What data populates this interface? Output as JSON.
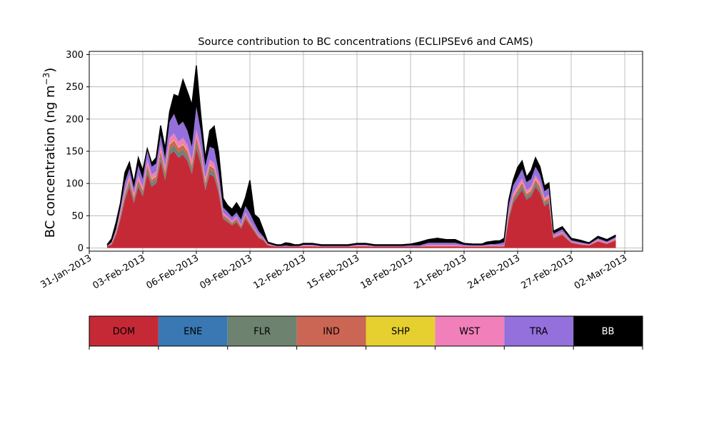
{
  "chart_data": {
    "type": "area",
    "title": "Source contribution to BC concentrations (ECLIPSEv6 and CAMS)",
    "ylabel_main": "BC concentration (ng m",
    "ylabel_sup": "−3",
    "ylabel_close": ")",
    "xlabel": "",
    "xlim": [
      "2013-01-31",
      "2013-03-03"
    ],
    "ylim": [
      -5,
      305
    ],
    "y_ticks": [
      0,
      50,
      100,
      150,
      200,
      250,
      300
    ],
    "x_ticks": [
      "2013-01-31",
      "2013-02-03",
      "2013-02-06",
      "2013-02-09",
      "2013-02-12",
      "2013-02-15",
      "2013-02-18",
      "2013-02-21",
      "2013-02-24",
      "2013-02-27",
      "2013-03-02"
    ],
    "x_tick_labels": [
      "31-Jan-2013",
      "03-Feb-2013",
      "06-Feb-2013",
      "09-Feb-2013",
      "12-Feb-2013",
      "15-Feb-2013",
      "18-Feb-2013",
      "21-Feb-2013",
      "24-Feb-2013",
      "27-Feb-2013",
      "02-Mar-2013"
    ],
    "grid": true,
    "stacked": true,
    "x": [
      "2013-02-01",
      "2013-02-01T06",
      "2013-02-01T12",
      "2013-02-01T18",
      "2013-02-02",
      "2013-02-02T06",
      "2013-02-02T12",
      "2013-02-02T18",
      "2013-02-03",
      "2013-02-03T06",
      "2013-02-03T12",
      "2013-02-03T18",
      "2013-02-04",
      "2013-02-04T06",
      "2013-02-04T12",
      "2013-02-04T18",
      "2013-02-05",
      "2013-02-05T06",
      "2013-02-05T12",
      "2013-02-05T18",
      "2013-02-06",
      "2013-02-06T06",
      "2013-02-06T12",
      "2013-02-06T18",
      "2013-02-07",
      "2013-02-07T06",
      "2013-02-07T12",
      "2013-02-07T18",
      "2013-02-08",
      "2013-02-08T06",
      "2013-02-08T12",
      "2013-02-08T18",
      "2013-02-09",
      "2013-02-09T06",
      "2013-02-09T12",
      "2013-02-09T18",
      "2013-02-10",
      "2013-02-10T06",
      "2013-02-10T12",
      "2013-02-10T18",
      "2013-02-11",
      "2013-02-11T06",
      "2013-02-11T12",
      "2013-02-11T18",
      "2013-02-12",
      "2013-02-12T12",
      "2013-02-13",
      "2013-02-13T12",
      "2013-02-14",
      "2013-02-14T12",
      "2013-02-15",
      "2013-02-15T12",
      "2013-02-16",
      "2013-02-16T12",
      "2013-02-17",
      "2013-02-17T12",
      "2013-02-18",
      "2013-02-18T12",
      "2013-02-19",
      "2013-02-19T12",
      "2013-02-20",
      "2013-02-20T12",
      "2013-02-21",
      "2013-02-21T12",
      "2013-02-22",
      "2013-02-22T06",
      "2013-02-22T12",
      "2013-02-22T18",
      "2013-02-23",
      "2013-02-23T06",
      "2013-02-23T12",
      "2013-02-23T18",
      "2013-02-24",
      "2013-02-24T06",
      "2013-02-24T12",
      "2013-02-24T18",
      "2013-02-25",
      "2013-02-25T06",
      "2013-02-25T12",
      "2013-02-25T18",
      "2013-02-26",
      "2013-02-26T12",
      "2013-02-27",
      "2013-02-27T12",
      "2013-02-28",
      "2013-02-28T12",
      "2013-03-01",
      "2013-03-01T12"
    ],
    "series": [
      {
        "name": "DOM",
        "color": "#c62936",
        "values": [
          3,
          5,
          20,
          45,
          75,
          95,
          70,
          95,
          80,
          115,
          95,
          100,
          135,
          105,
          145,
          150,
          140,
          145,
          135,
          115,
          155,
          130,
          90,
          115,
          110,
          85,
          45,
          40,
          35,
          40,
          30,
          45,
          35,
          25,
          15,
          12,
          4,
          3,
          2,
          2,
          2,
          2,
          2,
          2,
          2,
          2,
          2,
          2,
          2,
          2,
          2,
          2,
          2,
          2,
          2,
          2,
          2,
          2,
          2,
          2,
          2,
          2,
          2,
          2,
          2,
          2,
          2,
          2,
          2,
          2,
          45,
          70,
          80,
          90,
          75,
          80,
          95,
          85,
          65,
          70,
          15,
          20,
          8,
          5,
          4,
          10,
          6,
          12
        ]
      },
      {
        "name": "ENE",
        "color": "#3a78b4",
        "values": [
          0,
          0,
          0,
          1,
          1,
          1,
          1,
          1,
          1,
          1,
          1,
          1,
          1,
          1,
          1,
          1,
          1,
          1,
          1,
          1,
          1,
          1,
          1,
          1,
          1,
          1,
          0,
          0,
          0,
          0,
          0,
          0,
          0,
          0,
          0,
          0,
          0,
          0,
          0,
          0,
          0,
          0,
          0,
          0,
          0,
          0,
          0,
          0,
          0,
          0,
          0,
          0,
          0,
          0,
          0,
          0,
          0,
          0,
          0,
          0,
          0,
          0,
          0,
          0,
          0,
          0,
          0,
          0,
          0,
          0,
          1,
          1,
          1,
          1,
          1,
          1,
          1,
          1,
          1,
          1,
          0,
          0,
          0,
          0,
          0,
          0,
          0,
          0
        ]
      },
      {
        "name": "FLR",
        "color": "#6e8270",
        "values": [
          0,
          1,
          2,
          3,
          4,
          5,
          4,
          5,
          4,
          6,
          5,
          5,
          7,
          6,
          7,
          8,
          7,
          7,
          7,
          6,
          8,
          7,
          5,
          6,
          6,
          5,
          3,
          3,
          2,
          3,
          2,
          3,
          2,
          2,
          1,
          1,
          0,
          0,
          0,
          0,
          0,
          0,
          0,
          0,
          0,
          0,
          0,
          0,
          0,
          0,
          0,
          0,
          0,
          0,
          0,
          0,
          0,
          0,
          0,
          0,
          0,
          0,
          0,
          0,
          0,
          0,
          0,
          0,
          0,
          0,
          3,
          4,
          4,
          5,
          4,
          4,
          5,
          4,
          3,
          3,
          1,
          1,
          0,
          0,
          0,
          0,
          0,
          0
        ]
      },
      {
        "name": "IND",
        "color": "#cc6654",
        "values": [
          0,
          1,
          2,
          3,
          4,
          5,
          4,
          5,
          4,
          6,
          5,
          5,
          7,
          6,
          7,
          8,
          7,
          7,
          7,
          6,
          8,
          7,
          5,
          6,
          6,
          5,
          3,
          3,
          2,
          3,
          2,
          3,
          2,
          2,
          2,
          1,
          1,
          0,
          0,
          0,
          0,
          0,
          0,
          0,
          1,
          1,
          0,
          0,
          0,
          0,
          1,
          1,
          0,
          0,
          0,
          0,
          0,
          0,
          1,
          1,
          1,
          1,
          0,
          0,
          0,
          1,
          1,
          1,
          1,
          1,
          3,
          4,
          5,
          5,
          4,
          4,
          5,
          5,
          4,
          4,
          1,
          2,
          1,
          1,
          0,
          1,
          1,
          1
        ]
      },
      {
        "name": "SHP",
        "color": "#e6d030",
        "values": [
          0,
          0,
          0,
          1,
          1,
          1,
          1,
          1,
          1,
          1,
          1,
          1,
          1,
          1,
          1,
          1,
          1,
          1,
          1,
          1,
          1,
          1,
          1,
          1,
          1,
          1,
          0,
          0,
          0,
          0,
          0,
          0,
          0,
          0,
          0,
          0,
          0,
          0,
          0,
          0,
          0,
          0,
          0,
          0,
          0,
          0,
          0,
          0,
          0,
          0,
          0,
          0,
          0,
          0,
          0,
          0,
          0,
          0,
          0,
          0,
          0,
          0,
          0,
          0,
          0,
          0,
          0,
          0,
          0,
          0,
          1,
          1,
          1,
          1,
          1,
          1,
          1,
          1,
          1,
          1,
          0,
          0,
          0,
          0,
          0,
          0,
          0,
          0
        ]
      },
      {
        "name": "WST",
        "color": "#f07fba",
        "values": [
          0,
          1,
          2,
          4,
          5,
          6,
          5,
          6,
          5,
          8,
          7,
          7,
          9,
          8,
          10,
          10,
          9,
          10,
          9,
          8,
          11,
          10,
          7,
          8,
          8,
          6,
          4,
          3,
          3,
          3,
          2,
          4,
          3,
          2,
          2,
          1,
          1,
          1,
          0,
          0,
          0,
          0,
          0,
          0,
          1,
          1,
          0,
          0,
          0,
          0,
          1,
          1,
          0,
          0,
          0,
          0,
          0,
          0,
          2,
          2,
          2,
          2,
          1,
          1,
          1,
          1,
          1,
          1,
          1,
          1,
          4,
          5,
          6,
          6,
          5,
          5,
          6,
          6,
          4,
          4,
          2,
          2,
          1,
          1,
          1,
          2,
          1,
          2
        ]
      },
      {
        "name": "TRA",
        "color": "#9370db",
        "values": [
          0,
          1,
          3,
          6,
          12,
          10,
          8,
          15,
          12,
          15,
          12,
          12,
          15,
          12,
          25,
          30,
          25,
          25,
          22,
          20,
          35,
          25,
          18,
          20,
          22,
          15,
          8,
          7,
          6,
          6,
          8,
          10,
          12,
          8,
          6,
          3,
          1,
          1,
          1,
          1,
          2,
          1,
          1,
          1,
          1,
          1,
          1,
          1,
          1,
          1,
          1,
          1,
          1,
          1,
          1,
          1,
          2,
          2,
          3,
          3,
          3,
          3,
          2,
          1,
          1,
          1,
          2,
          2,
          3,
          5,
          10,
          12,
          12,
          14,
          12,
          12,
          13,
          12,
          10,
          10,
          3,
          4,
          2,
          2,
          1,
          2,
          2,
          2
        ]
      },
      {
        "name": "BB",
        "color": "#000000",
        "values": [
          2,
          5,
          10,
          7,
          15,
          10,
          8,
          12,
          13,
          2,
          6,
          9,
          15,
          15,
          15,
          30,
          45,
          65,
          60,
          65,
          64,
          25,
          12,
          25,
          35,
          30,
          14,
          10,
          12,
          15,
          15,
          13,
          51,
          13,
          20,
          10,
          2,
          2,
          2,
          2,
          4,
          4,
          2,
          2,
          2,
          2,
          2,
          2,
          2,
          2,
          2,
          2,
          2,
          2,
          2,
          2,
          2,
          5,
          5,
          7,
          5,
          5,
          2,
          2,
          2,
          4,
          4,
          5,
          4,
          6,
          7,
          8,
          16,
          13,
          8,
          13,
          14,
          12,
          8,
          8,
          4,
          4,
          3,
          3,
          2,
          3,
          3,
          3
        ]
      }
    ],
    "legend": {
      "placement": "bottom",
      "items": [
        {
          "label": "DOM",
          "color": "#c62936"
        },
        {
          "label": "ENE",
          "color": "#3a78b4"
        },
        {
          "label": "FLR",
          "color": "#6e8270"
        },
        {
          "label": "IND",
          "color": "#cc6654"
        },
        {
          "label": "SHP",
          "color": "#e6d030"
        },
        {
          "label": "WST",
          "color": "#f07fba"
        },
        {
          "label": "TRA",
          "color": "#9370db"
        },
        {
          "label": "BB",
          "color": "#000000"
        }
      ]
    }
  }
}
